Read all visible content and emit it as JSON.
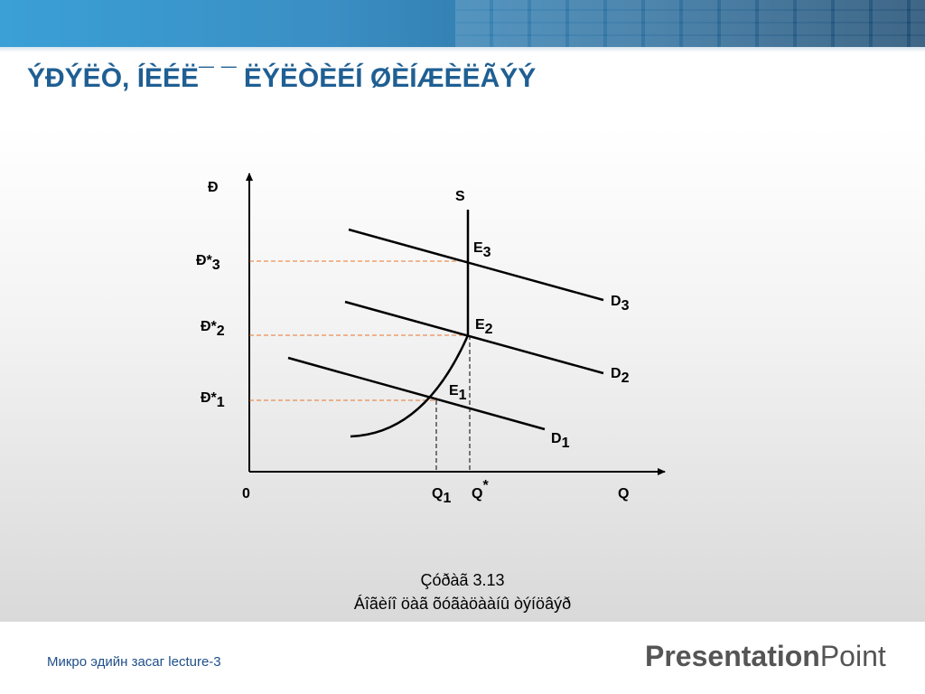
{
  "slide": {
    "title": "ÝÐÝËÒ, ÍÈÉË¯ ¯ ËÝËÒÈÉÍ ØÈÍÆÈËÃÝÝ"
  },
  "diagram": {
    "axis_y_label": "Ð",
    "axis_x_label": "Q",
    "origin_label": "0",
    "supply_label": "S",
    "price_levels": [
      {
        "main": "Ð*",
        "sub": "3"
      },
      {
        "main": "Ð*",
        "sub": "2"
      },
      {
        "main": "Ð*",
        "sub": "1"
      }
    ],
    "equilibria": [
      {
        "main": "E",
        "sub": "3"
      },
      {
        "main": "E",
        "sub": "2"
      },
      {
        "main": "E",
        "sub": "1"
      }
    ],
    "demand_curves": [
      {
        "main": "D",
        "sub": "3"
      },
      {
        "main": "D",
        "sub": "2"
      },
      {
        "main": "D",
        "sub": "1"
      }
    ],
    "quantities": [
      {
        "main": "Q",
        "sub": "1"
      },
      {
        "main": "Q",
        "sub": "*"
      }
    ],
    "colors": {
      "curves": "#000000",
      "price_guides": "#e8742a",
      "quantity_guides": "#000000"
    }
  },
  "caption": {
    "line1": "Çóðàã 3.13",
    "line2": "Áîãèíî öàã õóãàöààíû òýíöâýð"
  },
  "footer": {
    "course_text": "Микро эдийн засаг  lecture-3",
    "logo_bold": "Presentation",
    "logo_light": "Point"
  }
}
